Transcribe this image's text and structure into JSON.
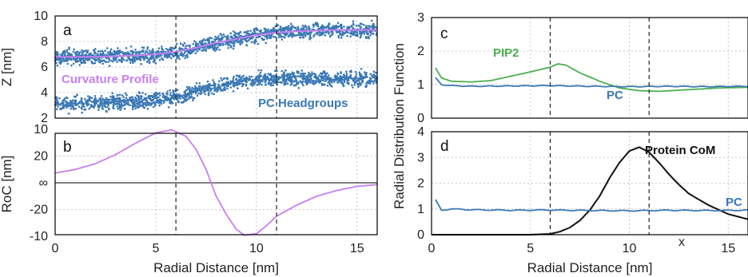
{
  "chart_data": [
    {
      "panel": "a",
      "type": "scatter",
      "xlim": [
        0,
        16
      ],
      "ylim": [
        2,
        10
      ],
      "yticks": [
        "2",
        "4",
        "6",
        "8",
        "10"
      ],
      "ylabel": "Z [nm]",
      "grid": true,
      "vlines": [
        6,
        11
      ],
      "series": [
        {
          "name": "PC Headgroups",
          "color": "#3a78b5",
          "x": [
            0,
            2,
            4,
            5,
            6,
            7,
            8,
            9,
            10,
            11,
            12,
            14,
            16
          ],
          "y_upper": [
            6.8,
            6.8,
            6.9,
            7.0,
            7.2,
            7.5,
            7.9,
            8.2,
            8.5,
            8.7,
            8.8,
            8.9,
            8.9
          ],
          "y_lower": [
            3.1,
            3.2,
            3.3,
            3.4,
            3.7,
            4.1,
            4.5,
            4.8,
            5.0,
            5.1,
            5.1,
            5.1,
            5.1
          ]
        },
        {
          "name": "Curvature Profile",
          "color": "#c77ff0",
          "x": [
            0,
            2,
            4,
            5,
            6,
            7,
            8,
            9,
            10,
            11,
            12,
            14,
            16
          ],
          "y": [
            6.8,
            6.8,
            6.9,
            7.0,
            7.2,
            7.5,
            7.9,
            8.2,
            8.5,
            8.7,
            8.8,
            8.9,
            8.9
          ]
        }
      ]
    },
    {
      "panel": "b",
      "type": "line",
      "xlim": [
        0,
        16
      ],
      "xlabel": "Radial Distance [nm]",
      "ylabel": "RoC [nm]",
      "xticks": [
        "0",
        "5",
        "10",
        "15"
      ],
      "yticks": [
        "10",
        "20",
        "∞",
        "-20",
        "-10"
      ],
      "grid": true,
      "vlines": [
        6,
        11
      ],
      "note": "y axis is curvature 1/RoC; ∞ at zero curvature",
      "series": [
        {
          "color": "#c77ff0",
          "x": [
            0,
            1,
            2,
            3,
            4,
            5,
            5.8,
            6.5,
            7,
            7.5,
            8,
            8.5,
            9,
            9.4,
            10,
            10.5,
            11,
            12,
            13,
            14,
            15,
            16
          ],
          "roc": [
            55,
            40,
            28,
            19,
            13.5,
            10.7,
            10.1,
            11.5,
            16,
            40,
            -40,
            -17,
            -11.5,
            -10.2,
            -10.5,
            -12.5,
            -16,
            -24,
            -40,
            -70,
            -150,
            -300
          ]
        }
      ]
    },
    {
      "panel": "c",
      "type": "line",
      "xlim": [
        0,
        16
      ],
      "ylim": [
        0,
        3
      ],
      "yticks": [
        "0",
        "1",
        "2",
        "3"
      ],
      "grid": true,
      "vlines": [
        6,
        11
      ],
      "series": [
        {
          "name": "PIP2",
          "color": "#4caf50",
          "x": [
            0.2,
            0.5,
            1,
            2,
            3,
            4,
            5,
            6,
            6.4,
            6.8,
            7.5,
            8.5,
            9.5,
            10.5,
            11.5,
            13,
            14.5,
            16
          ],
          "y": [
            1.5,
            1.2,
            1.1,
            1.08,
            1.12,
            1.25,
            1.38,
            1.52,
            1.62,
            1.58,
            1.35,
            1.1,
            0.9,
            0.82,
            0.8,
            0.85,
            0.9,
            0.92
          ]
        },
        {
          "name": "PC",
          "color": "#3a78b5",
          "x": [
            0.2,
            0.5,
            1,
            2,
            4,
            6,
            8,
            10,
            12,
            14,
            16
          ],
          "y": [
            1.2,
            1.0,
            0.97,
            0.95,
            0.96,
            0.97,
            0.95,
            0.94,
            0.95,
            0.94,
            0.95
          ]
        }
      ]
    },
    {
      "panel": "d",
      "type": "line",
      "xlim": [
        0,
        16
      ],
      "ylim": [
        0,
        4
      ],
      "yticks": [
        "0",
        "1",
        "2",
        "3",
        "4"
      ],
      "xticks": [
        "0",
        "5",
        "10",
        "15"
      ],
      "xlabel": "Radial Distance [nm]",
      "grid": true,
      "vlines": [
        6,
        11
      ],
      "marker_label": "x",
      "series": [
        {
          "name": "Protein CoM",
          "color": "#111111",
          "x": [
            0,
            5,
            6,
            6.5,
            7,
            7.5,
            8,
            8.5,
            9,
            9.5,
            10,
            10.5,
            11,
            11.5,
            12,
            12.5,
            13,
            14,
            15,
            16
          ],
          "y": [
            0,
            0,
            0.03,
            0.12,
            0.28,
            0.55,
            0.95,
            1.5,
            2.2,
            2.8,
            3.25,
            3.4,
            3.2,
            2.8,
            2.35,
            1.95,
            1.6,
            1.15,
            0.8,
            0.6
          ]
        },
        {
          "name": "PC",
          "color": "#3a78b5",
          "x": [
            0.2,
            0.5,
            1,
            2,
            4,
            6,
            8,
            10,
            12,
            14,
            16
          ],
          "y": [
            1.35,
            0.95,
            1.0,
            0.97,
            0.95,
            0.96,
            0.94,
            0.93,
            0.95,
            0.94,
            0.95
          ]
        }
      ]
    }
  ],
  "ylabel_right": "Radial Distribution Function"
}
